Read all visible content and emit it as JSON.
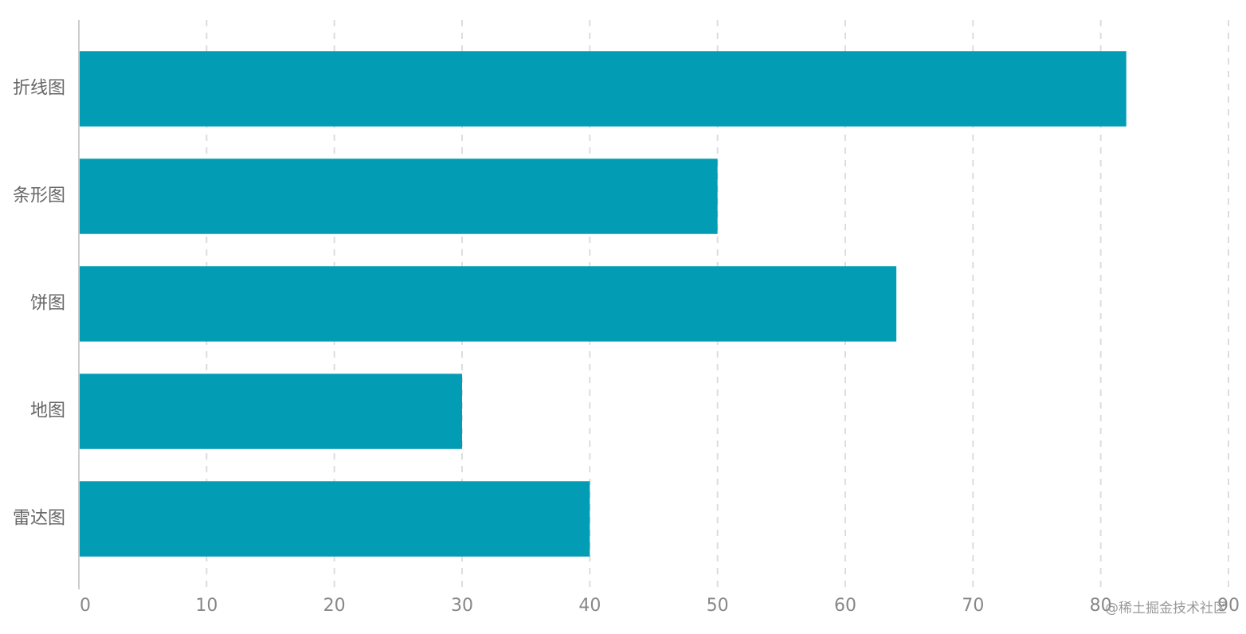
{
  "chart_data": {
    "type": "hbar",
    "categories": [
      "折线图",
      "条形图",
      "饼图",
      "地图",
      "雷达图"
    ],
    "values": [
      82,
      50,
      64,
      30,
      40
    ],
    "color": "#039cb5",
    "xlim": [
      0,
      90
    ],
    "xticks": [
      0,
      10,
      20,
      30,
      40,
      50,
      60,
      70,
      80,
      90
    ],
    "grid": true,
    "watermark": "@稀土掘金技术社区"
  }
}
